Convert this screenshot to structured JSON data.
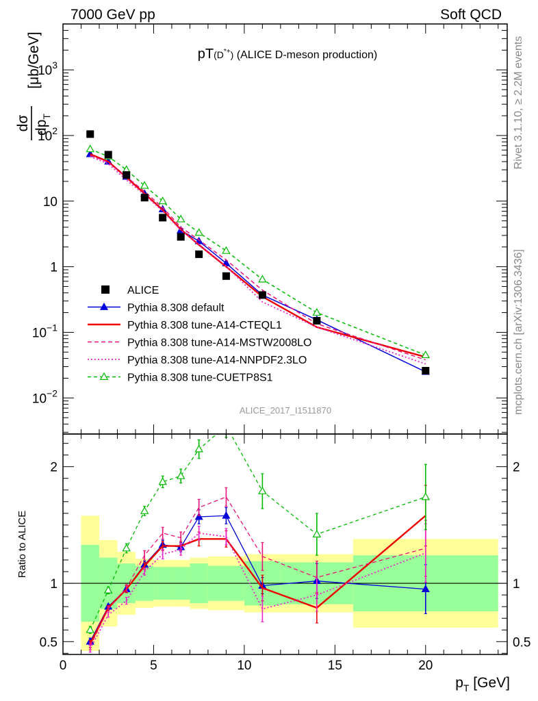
{
  "header": {
    "left": "7000 GeV pp",
    "right": "Soft QCD"
  },
  "side": {
    "rivet": "Rivet 3.1.10, ≥ 2.2M events",
    "mcplots": "mcplots.cern.ch [arXiv:1306.3436]"
  },
  "chart_data": {
    "type": "line",
    "title": "pT(D*+) (ALICE D-meson production)",
    "analysis_id": "ALICE_2017_I1511870",
    "xlabel": "p_T [GeV]",
    "ylabel_main": "dσ/dp_T [μb/GeV]",
    "ylabel_ratio": "Ratio to ALICE",
    "xlim": [
      0,
      24.5
    ],
    "main_ylim_log10": [
      -2.55,
      3.7
    ],
    "main_yscale": "log",
    "ratio_ylim": [
      0.39,
      2.28
    ],
    "x_ticks": [
      "0",
      "5",
      "10",
      "15",
      "20"
    ],
    "main_y_ticks": [
      "10^-2",
      "10^-1",
      "1",
      "10",
      "10^2",
      "10^3"
    ],
    "ratio_y_ticks": [
      "0.5",
      "1",
      "2"
    ],
    "legend_position": "lower-left",
    "x": [
      1.5,
      2.5,
      3.5,
      4.5,
      5.5,
      6.5,
      7.5,
      9.0,
      11.0,
      14.0,
      20.0
    ],
    "data": {
      "name": "ALICE",
      "color": "#000000",
      "values": [
        105,
        51,
        25,
        11.3,
        5.6,
        2.85,
        1.55,
        0.72,
        0.37,
        0.15,
        0.026
      ],
      "bins": [
        [
          1,
          2
        ],
        [
          2,
          3
        ],
        [
          3,
          4
        ],
        [
          4,
          5
        ],
        [
          5,
          6
        ],
        [
          6,
          7
        ],
        [
          7,
          8
        ],
        [
          8,
          10
        ],
        [
          10,
          12
        ],
        [
          12,
          16
        ],
        [
          16,
          24
        ]
      ],
      "band_stat": [
        0.33,
        0.22,
        0.17,
        0.15,
        0.14,
        0.14,
        0.17,
        0.15,
        0.19,
        0.18,
        0.24
      ],
      "band_total": [
        0.58,
        0.37,
        0.27,
        0.21,
        0.2,
        0.2,
        0.22,
        0.23,
        0.25,
        0.25,
        0.38
      ]
    },
    "series": [
      {
        "name": "Pythia 8.308 default",
        "color": "#0000dd",
        "dash": "",
        "marker": "triangle-filled",
        "values": [
          52,
          40,
          23.5,
          13,
          7.5,
          3.6,
          2.45,
          1.13,
          0.37,
          0.155,
          0.025
        ],
        "ratio": [
          0.5,
          0.8,
          0.95,
          1.16,
          1.33,
          1.31,
          1.57,
          1.58,
          0.98,
          1.02,
          0.95
        ],
        "ratio_err": [
          0.03,
          0.02,
          0.03,
          0.03,
          0.04,
          0.04,
          0.06,
          0.07,
          0.07,
          0.15,
          0.21
        ]
      },
      {
        "name": "Pythia 8.308 tune-A14-CTEQL1",
        "color": "#ee0000",
        "dash": "",
        "marker": "none",
        "values": [
          52,
          40,
          23,
          13,
          7.3,
          3.7,
          2.15,
          1.0,
          0.35,
          0.12,
          0.042
        ],
        "ratio": [
          0.48,
          0.79,
          0.95,
          1.15,
          1.32,
          1.32,
          1.38,
          1.38,
          0.96,
          0.79,
          1.58
        ],
        "ratio_err": [
          0.03,
          0.02,
          0.03,
          0.03,
          0.04,
          0.04,
          0.06,
          0.07,
          0.11,
          0.13,
          0.26
        ]
      },
      {
        "name": "Pythia 8.308 tune-A14-MSTW2008LO",
        "color": "#ee1177",
        "dash": "6,4",
        "marker": "none",
        "values": [
          50,
          39,
          23.5,
          14,
          8.0,
          4.0,
          2.55,
          1.27,
          0.44,
          0.135,
          0.038
        ],
        "ratio": [
          0.46,
          0.78,
          0.96,
          1.24,
          1.43,
          1.39,
          1.65,
          1.74,
          1.23,
          1.05,
          1.3
        ],
        "ratio_err": [
          0.03,
          0.02,
          0.03,
          0.04,
          0.05,
          0.05,
          0.07,
          0.08,
          0.12,
          0.14,
          0.24
        ]
      },
      {
        "name": "Pythia 8.308 tune-A14-NNPDF2.3LO",
        "color": "#ee22cc",
        "dash": "2,3",
        "marker": "none",
        "values": [
          48,
          37,
          21,
          12.5,
          7.0,
          3.6,
          2.2,
          1.02,
          0.29,
          0.12,
          0.033
        ],
        "ratio": [
          0.44,
          0.73,
          0.85,
          1.1,
          1.25,
          1.29,
          1.43,
          1.4,
          0.78,
          0.9,
          1.26
        ],
        "ratio_err": [
          0.03,
          0.02,
          0.03,
          0.03,
          0.04,
          0.05,
          0.06,
          0.07,
          0.11,
          0.14,
          0.25
        ]
      },
      {
        "name": "Pythia 8.308 tune-CUETP8S1",
        "color": "#00bb00",
        "dash": "5,4",
        "marker": "triangle-open",
        "values": [
          62,
          48,
          30,
          17.2,
          10,
          5.3,
          3.3,
          1.75,
          0.64,
          0.2,
          0.045
        ],
        "ratio": [
          0.6,
          0.94,
          1.3,
          1.62,
          1.87,
          1.92,
          2.15,
          2.35,
          1.79,
          1.42,
          1.74
        ],
        "ratio_err": [
          0.03,
          0.03,
          0.04,
          0.04,
          0.05,
          0.06,
          0.08,
          0.1,
          0.15,
          0.18,
          0.28
        ]
      }
    ]
  }
}
